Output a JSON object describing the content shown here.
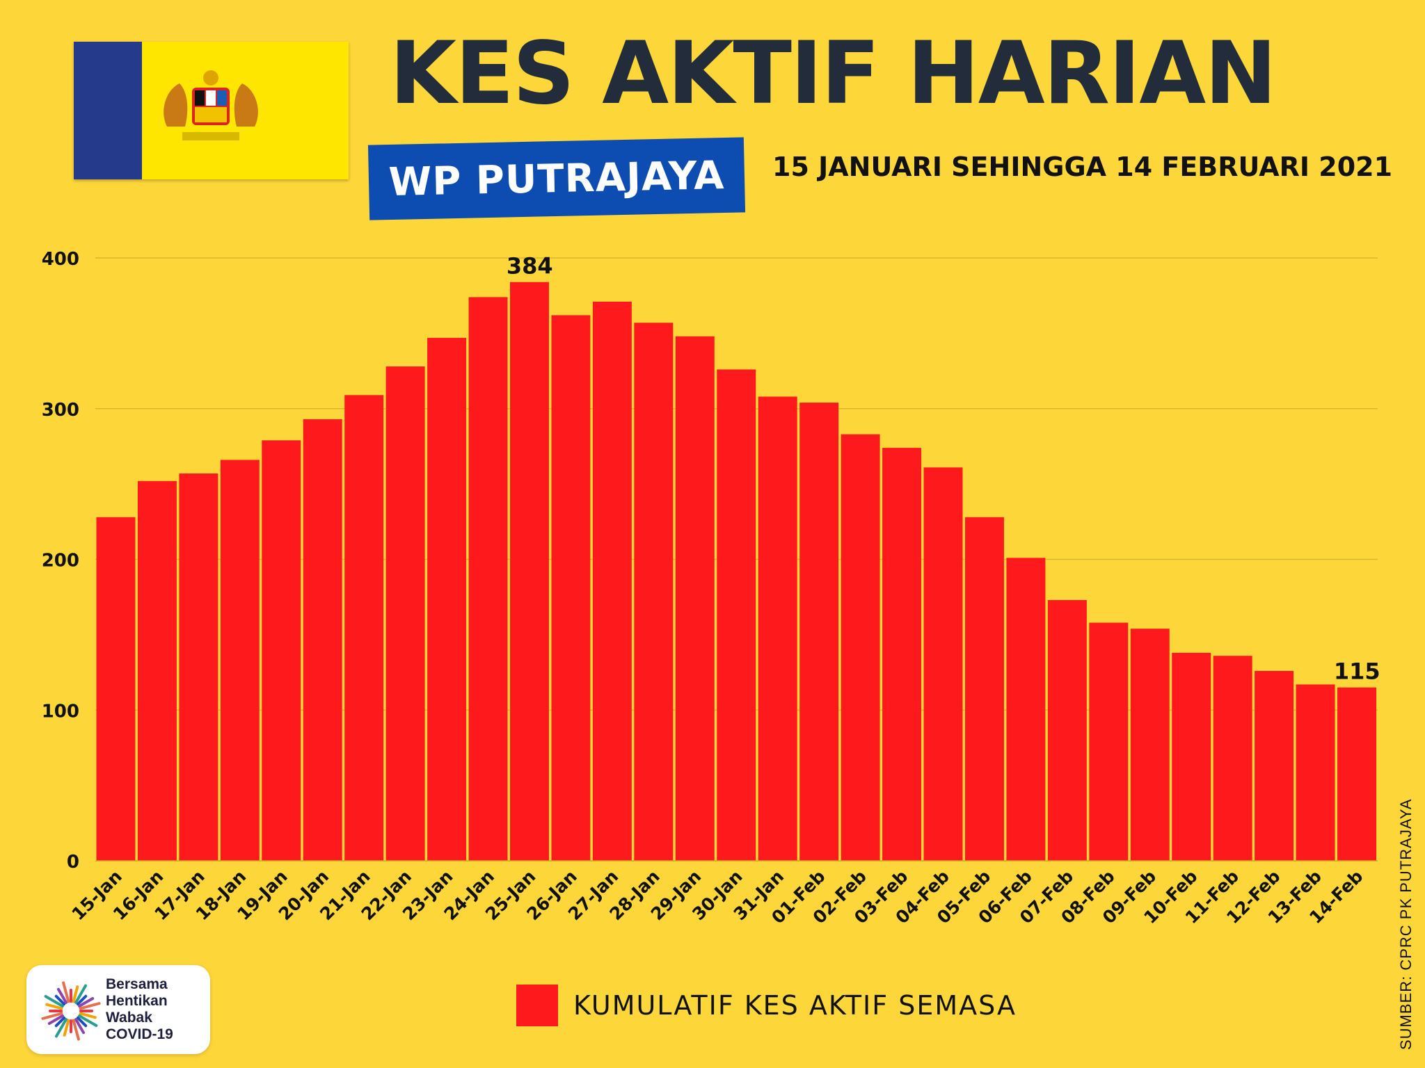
{
  "header": {
    "title": "KES AKTIF HARIAN",
    "region": "WP PUTRAJAYA",
    "period": "15 JANUARI SEHINGGA 14 FEBRUARI 2021"
  },
  "colors": {
    "background": "#fdd63a",
    "bar": "#fe1a1c",
    "title_text": "#222c3a",
    "region_banner": "#0d4db2",
    "flag_blue": "#263a8c",
    "flag_yellow": "#ffe600",
    "grid": "#d9b52a",
    "text": "#111111"
  },
  "chart_data": {
    "type": "bar",
    "categories": [
      "15-Jan",
      "16-Jan",
      "17-Jan",
      "18-Jan",
      "19-Jan",
      "20-Jan",
      "21-Jan",
      "22-Jan",
      "23-Jan",
      "24-Jan",
      "25-Jan",
      "26-Jan",
      "27-Jan",
      "28-Jan",
      "29-Jan",
      "30-Jan",
      "31-Jan",
      "01-Feb",
      "02-Feb",
      "03-Feb",
      "04-Feb",
      "05-Feb",
      "06-Feb",
      "07-Feb",
      "08-Feb",
      "09-Feb",
      "10-Feb",
      "11-Feb",
      "12-Feb",
      "13-Feb",
      "14-Feb"
    ],
    "series": [
      {
        "name": "KUMULATIF KES AKTIF SEMASA",
        "values": [
          228,
          252,
          257,
          266,
          279,
          293,
          309,
          328,
          347,
          374,
          384,
          362,
          371,
          357,
          348,
          326,
          308,
          304,
          283,
          274,
          261,
          228,
          201,
          173,
          158,
          154,
          138,
          136,
          126,
          117,
          115
        ]
      }
    ],
    "data_labels": [
      {
        "category": "25-Jan",
        "text": "384"
      },
      {
        "category": "14-Feb",
        "text": "115"
      }
    ],
    "yticks": [
      "0",
      "100",
      "200",
      "300",
      "400"
    ],
    "ylim": [
      0,
      400
    ],
    "grid": true,
    "legend_position": "bottom",
    "xlabel": "",
    "ylabel": ""
  },
  "legend": {
    "label": "KUMULATIF KES AKTIF SEMASA"
  },
  "logo": {
    "lines": [
      "Bersama",
      "Hentikan",
      "Wabak",
      "COVID-19"
    ]
  },
  "source": "SUMBER: CPRC PK PUTRAJAYA",
  "icons": {
    "flag": "putrajaya-flag-icon",
    "logo_burst": "starburst-logo-icon"
  }
}
